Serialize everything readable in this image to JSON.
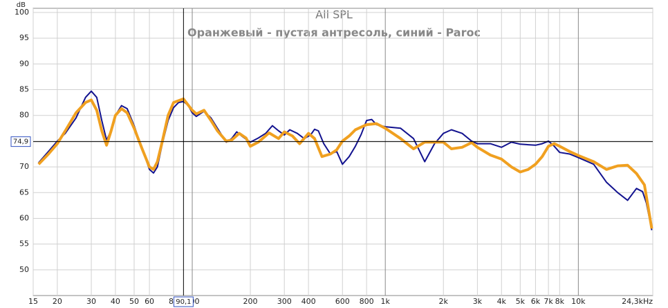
{
  "chart_data": {
    "type": "line",
    "title": "All SPL",
    "subtitle": "Оранжевый - пустая антресоль, синий - Parоc",
    "y_unit": "dB",
    "xlim": [
      15,
      24300
    ],
    "ylim": [
      45,
      100.8
    ],
    "x_log": true,
    "grid": true,
    "xticks": [
      15,
      20,
      30,
      40,
      50,
      60,
      80,
      100,
      200,
      300,
      400,
      600,
      800,
      {
        "value": 1000,
        "label": "1k"
      },
      {
        "value": 2000,
        "label": "2k"
      },
      {
        "value": 3000,
        "label": "3k"
      },
      {
        "value": 4000,
        "label": "4k"
      },
      {
        "value": 5000,
        "label": "5k"
      },
      {
        "value": 6000,
        "label": "6k"
      },
      {
        "value": 7000,
        "label": "7k"
      },
      {
        "value": 8000,
        "label": "8k"
      },
      {
        "value": 10000,
        "label": "10k"
      },
      {
        "value": 24300,
        "label": "24,3kHz"
      }
    ],
    "yticks": [
      50,
      55,
      60,
      65,
      70,
      75,
      80,
      85,
      90,
      95,
      100
    ],
    "cursor": {
      "x": {
        "value": 90.1,
        "label": "90,1"
      },
      "y": {
        "value": 74.9,
        "label": "74,9"
      }
    },
    "series": [
      {
        "color": "#12128f",
        "x": [
          16,
          18,
          20,
          22,
          25,
          28,
          30,
          32,
          34,
          36,
          38,
          40,
          43,
          46,
          50,
          55,
          60,
          63,
          66,
          70,
          75,
          80,
          85,
          90,
          95,
          100,
          105,
          115,
          125,
          135,
          150,
          160,
          170,
          180,
          200,
          220,
          240,
          260,
          280,
          300,
          320,
          350,
          380,
          410,
          430,
          450,
          480,
          520,
          560,
          600,
          650,
          700,
          750,
          800,
          850,
          900,
          1000,
          1200,
          1400,
          1600,
          1800,
          2000,
          2200,
          2500,
          2800,
          3000,
          3500,
          4000,
          4500,
          5000,
          5500,
          6000,
          6500,
          7000,
          7500,
          8000,
          9000,
          10000,
          12000,
          14000,
          16000,
          18000,
          20000,
          21500,
          22500,
          24000
        ],
        "values": [
          70.8,
          73,
          75,
          76.5,
          79.5,
          83.5,
          84.7,
          83.5,
          79,
          75.2,
          77,
          80,
          81.9,
          81.3,
          78,
          73.5,
          69.5,
          68.8,
          70,
          74.5,
          79,
          81.5,
          82.5,
          82.7,
          82,
          80.5,
          79.8,
          80.8,
          79.5,
          77.5,
          74.8,
          75.5,
          76.8,
          76,
          74.8,
          75.6,
          76.5,
          78,
          77,
          76.2,
          77.2,
          76.5,
          75.5,
          76.2,
          77.3,
          77,
          74.5,
          72.5,
          73,
          70.5,
          72,
          74,
          76.3,
          79,
          79.2,
          78.2,
          77.8,
          77.5,
          75.5,
          71,
          74.5,
          76.5,
          77.2,
          76.5,
          75,
          74.5,
          74.5,
          73.8,
          74.8,
          74.4,
          74.3,
          74.2,
          74.5,
          75,
          74,
          72.8,
          72.5,
          71.8,
          70.5,
          67,
          65,
          63.5,
          65.8,
          65.2,
          63,
          57.7
        ]
      },
      {
        "color": "#f0a020",
        "x": [
          16,
          18,
          20,
          22,
          25,
          28,
          30,
          32,
          34,
          36,
          38,
          40,
          43,
          46,
          50,
          55,
          60,
          63,
          66,
          70,
          75,
          80,
          90,
          100,
          105,
          115,
          125,
          135,
          150,
          160,
          175,
          190,
          200,
          220,
          250,
          280,
          300,
          330,
          360,
          400,
          430,
          470,
          520,
          560,
          600,
          650,
          700,
          800,
          900,
          1000,
          1200,
          1400,
          1600,
          1800,
          2000,
          2200,
          2500,
          2800,
          3000,
          3500,
          4000,
          4500,
          5000,
          5500,
          6000,
          6500,
          7000,
          7500,
          8000,
          9000,
          10000,
          12000,
          14000,
          16000,
          18000,
          20000,
          22000,
          24000
        ],
        "values": [
          70.5,
          72.5,
          74.5,
          77,
          80.5,
          82.5,
          83,
          81,
          77,
          74.2,
          77,
          80,
          81.3,
          80.5,
          77.5,
          73.5,
          70,
          69.5,
          71,
          75,
          80,
          82.5,
          83.2,
          81,
          80.3,
          81,
          79,
          77,
          75,
          75.2,
          76.5,
          75.6,
          74,
          74.8,
          76.6,
          75.5,
          76.8,
          76,
          74.5,
          76.5,
          75.5,
          72,
          72.5,
          73.3,
          75,
          76,
          77.2,
          78.2,
          78.4,
          77.5,
          75.5,
          73.5,
          74.8,
          74.8,
          74.8,
          73.5,
          73.8,
          74.7,
          73.8,
          72.3,
          71.5,
          70,
          69,
          69.5,
          70.5,
          72,
          74,
          74.5,
          74,
          73,
          72.2,
          71,
          69.5,
          70.2,
          70.3,
          68.7,
          66.5,
          58
        ]
      }
    ]
  }
}
